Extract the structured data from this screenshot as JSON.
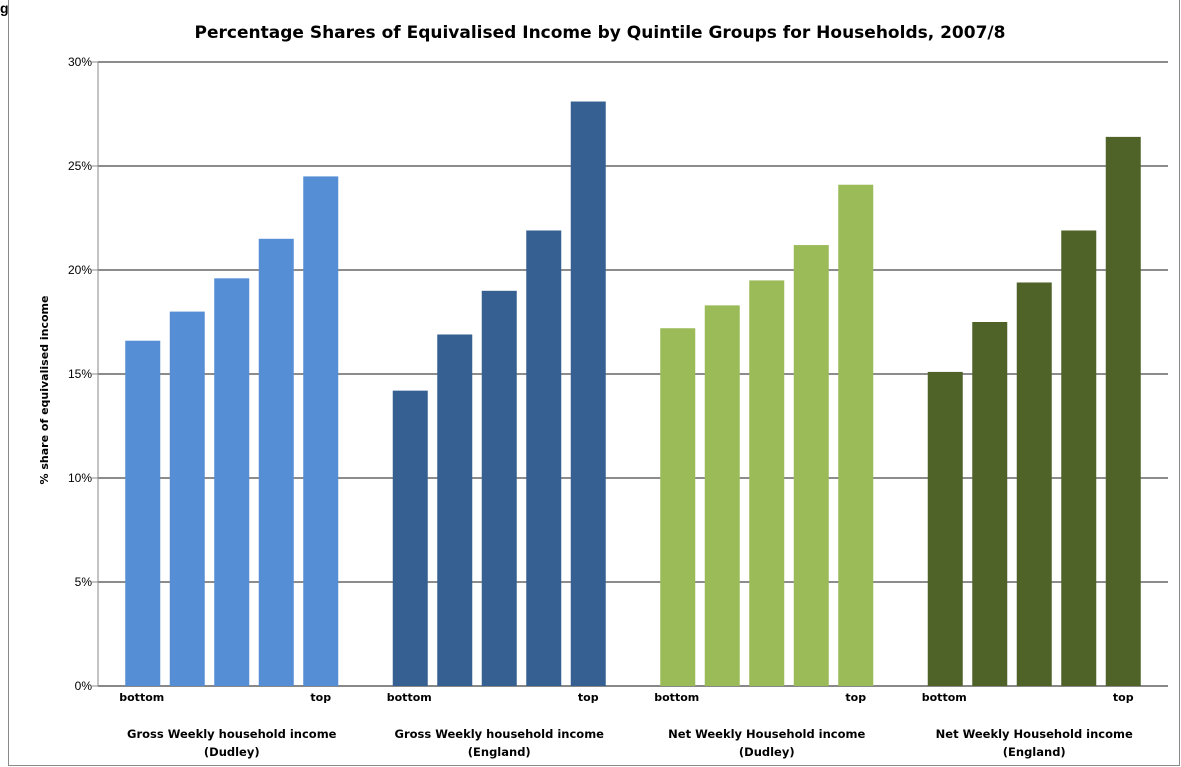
{
  "corner_label": "g",
  "chart_data": {
    "type": "bar",
    "title": "Percentage Shares of Equivalised Income by Quintile Groups for Households, 2007/8",
    "xlabel": "",
    "ylabel": "% share of equivalised income",
    "ylim": [
      0,
      30
    ],
    "yticks": [
      "0%",
      "5%",
      "10%",
      "15%",
      "20%",
      "25%",
      "30%"
    ],
    "grid": true,
    "bottom_label": "bottom",
    "top_label": "top",
    "groups": [
      {
        "label_line1": "Gross Weekly household income",
        "label_line2": "(Dudley)",
        "color": "#558ED5",
        "values": [
          16.6,
          18.0,
          19.6,
          21.5,
          24.5
        ]
      },
      {
        "label_line1": "Gross Weekly household income",
        "label_line2": "(England)",
        "color": "#376092",
        "values": [
          14.2,
          16.9,
          19.0,
          21.9,
          28.1
        ]
      },
      {
        "label_line1": "Net Weekly Household income",
        "label_line2": "(Dudley)",
        "color": "#9BBB59",
        "values": [
          17.2,
          18.3,
          19.5,
          21.2,
          24.1
        ]
      },
      {
        "label_line1": "Net Weekly Household income",
        "label_line2": "(England)",
        "color": "#4F6228",
        "values": [
          15.1,
          17.5,
          19.4,
          21.9,
          26.4
        ]
      }
    ]
  }
}
